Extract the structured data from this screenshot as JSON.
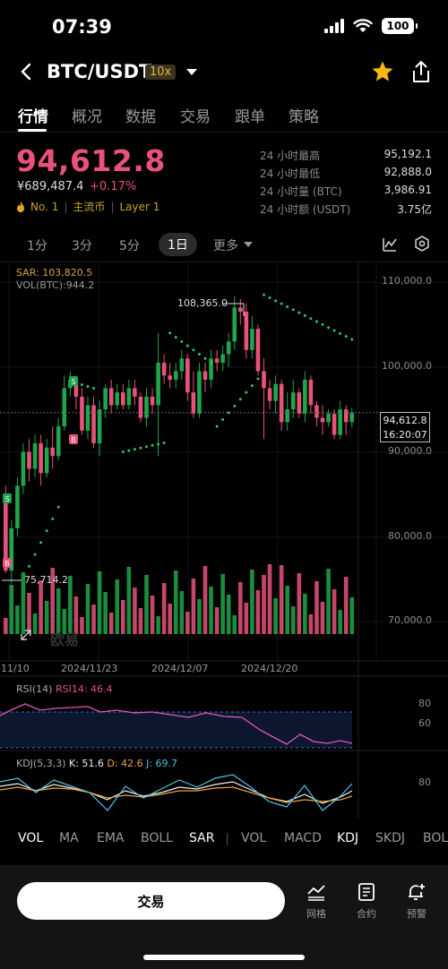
{
  "status_bar": {
    "time": "07:39",
    "battery": "100"
  },
  "header": {
    "pair": "BTC/USDT",
    "leverage": "10x"
  },
  "tabs": [
    "行情",
    "概况",
    "数据",
    "交易",
    "跟单",
    "策略"
  ],
  "ticker": {
    "price": "94,612.8",
    "cny": "¥689,487.4",
    "change": "+0.17%",
    "rank": "No. 1",
    "tag1": "主流币",
    "tag2": "Layer 1"
  },
  "stats": [
    {
      "label": "24 小时最高",
      "value": "95,192.1"
    },
    {
      "label": "24 小时最低",
      "value": "92,888.0"
    },
    {
      "label": "24 小时量 (BTC)",
      "value": "3,986.91"
    },
    {
      "label": "24 小时额 (USDT)",
      "value": "3.75亿"
    }
  ],
  "intervals": [
    "1分",
    "3分",
    "5分",
    "1日",
    "更多"
  ],
  "chart": {
    "sar_label": "SAR: 103,820.5",
    "vol_label": "VOL(BTC):944.2",
    "y_ticks": [
      "110,000.0",
      "100,000.0",
      "90,000.0",
      "80,000.0",
      "70,000.0"
    ],
    "x_ticks": [
      "11/10",
      "2024/11/23",
      "2024/12/07",
      "2024/12/20"
    ],
    "high_label": "108,365.0",
    "low_label": "75,714.2",
    "last_price": "94,612.8",
    "last_time": "16:20:07",
    "watermark": "欧易",
    "rsi_label": "RSI(14)",
    "rsi_value": "RSI14: 46.4",
    "rsi_ticks": [
      "80",
      "60"
    ],
    "kdj_label": "KDJ(5,3,3)",
    "kdj_k": "K: 51.6",
    "kdj_d": "D: 42.6",
    "kdj_j": "J: 69.7",
    "kdj_tick": "80",
    "buy_marker": "B",
    "sell_marker": "S"
  },
  "indicator_tabs": [
    "VOL",
    "MA",
    "EMA",
    "BOLL",
    "SAR",
    "VOL",
    "MACD",
    "KDJ",
    "SKDJ",
    "BOL"
  ],
  "bottom": {
    "trade": "交易",
    "grid": "网格",
    "contract": "合约",
    "alert": "预警"
  },
  "colors": {
    "up": "#1fa64a",
    "down": "#e8527a",
    "sar": "#2ec36b"
  }
}
